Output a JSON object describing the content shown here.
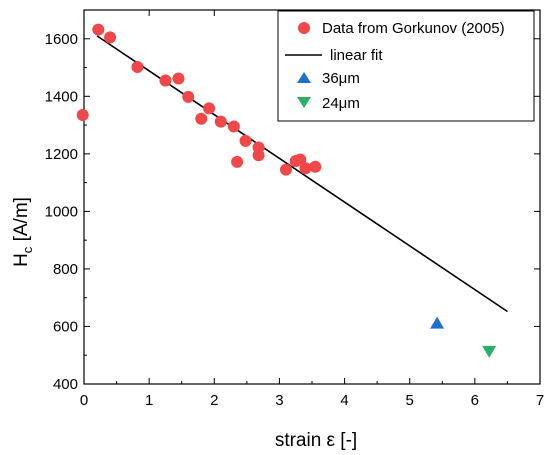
{
  "chart_data": {
    "type": "scatter",
    "xlabel": "strain ε [-]",
    "ylabel_main": "H",
    "ylabel_sub": "c",
    "ylabel_rest": " [A/m]",
    "xlim": [
      0,
      7
    ],
    "ylim": [
      400,
      1700
    ],
    "xticks": [
      0,
      1,
      2,
      3,
      4,
      5,
      6,
      7
    ],
    "yticks": [
      400,
      600,
      800,
      1000,
      1200,
      1400,
      1600
    ],
    "grid": false,
    "legend_position": "top-right",
    "series": [
      {
        "name": "Data from Gorkunov (2005)",
        "marker": "circle",
        "color": "#f04848",
        "points": [
          [
            -0.02,
            1335
          ],
          [
            0.22,
            1632
          ],
          [
            0.4,
            1605
          ],
          [
            0.82,
            1502
          ],
          [
            1.25,
            1455
          ],
          [
            1.45,
            1462
          ],
          [
            1.6,
            1398
          ],
          [
            1.8,
            1322
          ],
          [
            1.92,
            1358
          ],
          [
            2.1,
            1312
          ],
          [
            2.3,
            1295
          ],
          [
            2.35,
            1172
          ],
          [
            2.48,
            1245
          ],
          [
            2.68,
            1222
          ],
          [
            2.68,
            1195
          ],
          [
            3.1,
            1145
          ],
          [
            3.25,
            1175
          ],
          [
            3.32,
            1180
          ],
          [
            3.4,
            1150
          ],
          [
            3.55,
            1155
          ]
        ]
      },
      {
        "name": "linear fit",
        "marker": "line",
        "color": "#000000",
        "points": [
          [
            0.2,
            1610
          ],
          [
            6.5,
            652
          ]
        ]
      },
      {
        "name": "36μm",
        "marker": "triangle-up",
        "color": "#1f6fd0",
        "points": [
          [
            5.42,
            610
          ]
        ]
      },
      {
        "name": "24μm",
        "marker": "triangle-down",
        "color": "#2bb06a",
        "points": [
          [
            6.22,
            515
          ]
        ]
      }
    ]
  }
}
